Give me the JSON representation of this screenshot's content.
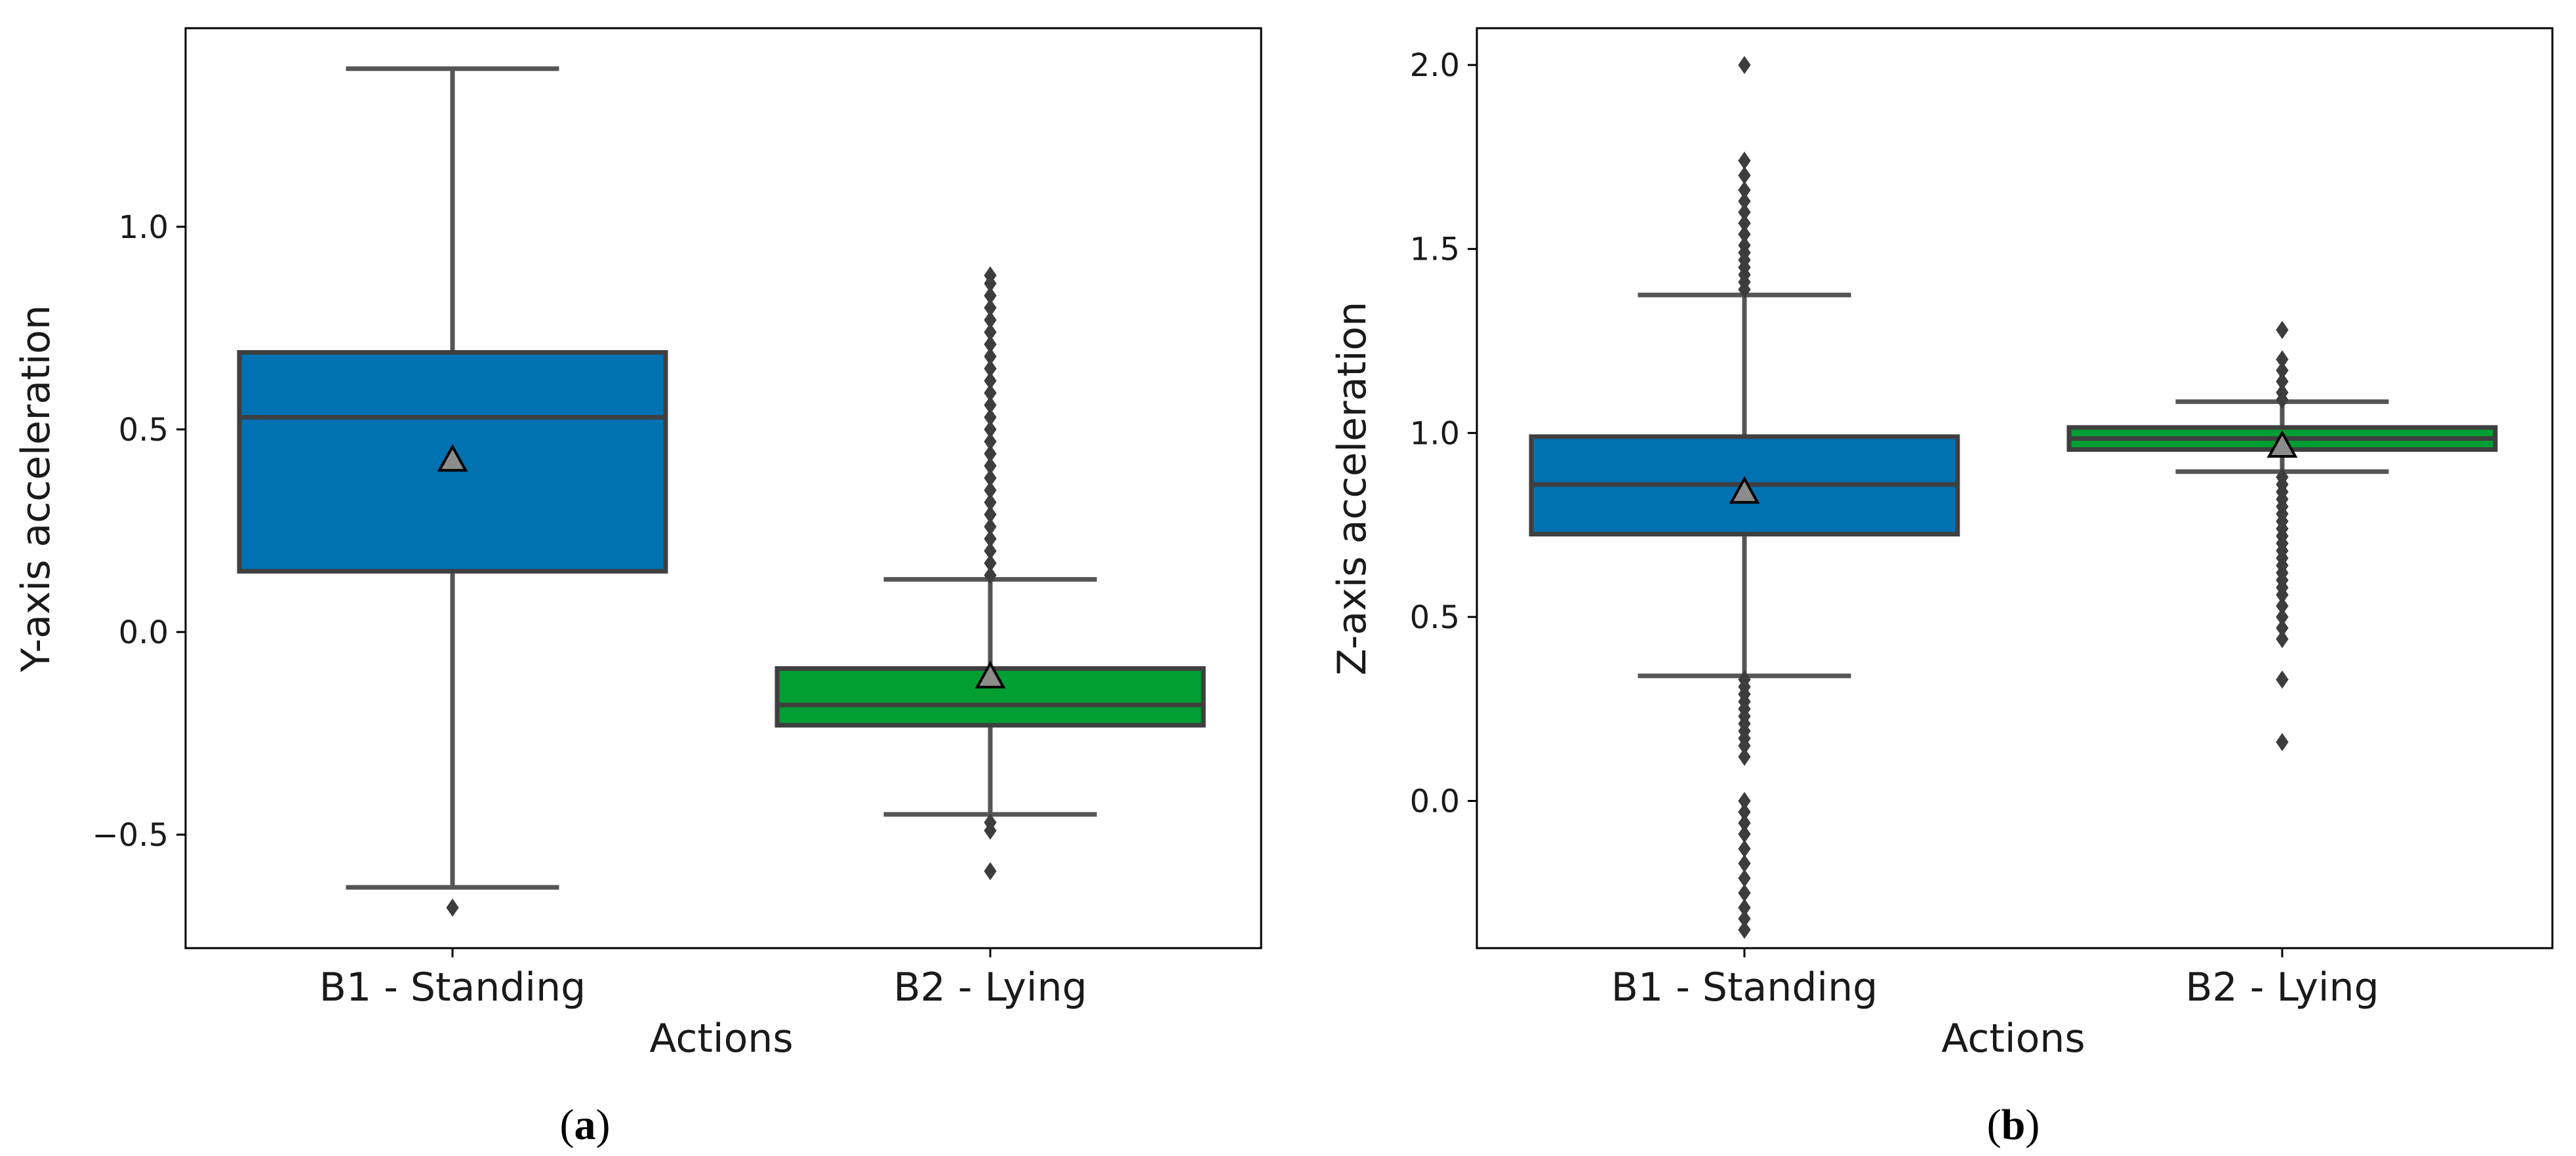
{
  "chart_data": [
    {
      "type": "box",
      "panel_label": "a",
      "xlabel": "Actions",
      "ylabel": "Y-axis acceleration",
      "categories": [
        "B1 - Standing",
        "B2 - Lying"
      ],
      "ylim": [
        -0.78,
        1.49
      ],
      "yticks": [
        -0.5,
        0.0,
        0.5,
        1.0
      ],
      "ytick_labels": [
        "−0.5",
        "0.0",
        "0.5",
        "1.0"
      ],
      "colors": [
        "#0072B2",
        "#009E33"
      ],
      "boxes": [
        {
          "name": "B1 - Standing",
          "whisker_low": -0.63,
          "q1": 0.15,
          "median": 0.53,
          "q3": 0.69,
          "whisker_high": 1.39,
          "mean": 0.425,
          "outliers": [
            -0.68
          ]
        },
        {
          "name": "B2 - Lying",
          "whisker_low": -0.45,
          "q1": -0.23,
          "median": -0.18,
          "q3": -0.09,
          "whisker_high": 0.13,
          "mean": -0.11,
          "outliers": [
            0.14,
            0.17,
            0.2,
            0.23,
            0.26,
            0.29,
            0.32,
            0.35,
            0.38,
            0.41,
            0.44,
            0.47,
            0.5,
            0.53,
            0.56,
            0.59,
            0.62,
            0.65,
            0.68,
            0.71,
            0.74,
            0.77,
            0.8,
            0.83,
            0.86,
            0.88,
            -0.47,
            -0.49,
            -0.59
          ]
        }
      ]
    },
    {
      "type": "box",
      "panel_label": "b",
      "xlabel": "Actions",
      "ylabel": "Z-axis acceleration",
      "categories": [
        "B1 - Standing",
        "B2 - Lying"
      ],
      "ylim": [
        -0.4,
        2.1
      ],
      "yticks": [
        0.0,
        0.5,
        1.0,
        1.5,
        2.0
      ],
      "ytick_labels": [
        "0.0",
        "0.5",
        "1.0",
        "1.5",
        "2.0"
      ],
      "colors": [
        "#0072B2",
        "#009E33"
      ],
      "boxes": [
        {
          "name": "B1 - Standing",
          "whisker_low": 0.34,
          "q1": 0.725,
          "median": 0.86,
          "q3": 0.99,
          "whisker_high": 1.375,
          "mean": 0.84,
          "outliers": [
            2.0,
            1.74,
            1.7,
            1.66,
            1.63,
            1.6,
            1.57,
            1.54,
            1.51,
            1.49,
            1.47,
            1.45,
            1.43,
            1.41,
            1.39,
            0.33,
            0.31,
            0.29,
            0.27,
            0.25,
            0.23,
            0.21,
            0.19,
            0.17,
            0.15,
            0.12,
            0.0,
            -0.03,
            -0.06,
            -0.09,
            -0.13,
            -0.17,
            -0.21,
            -0.25,
            -0.29,
            -0.32,
            -0.35
          ]
        },
        {
          "name": "B2 - Lying",
          "whisker_low": 0.895,
          "q1": 0.955,
          "median": 0.985,
          "q3": 1.015,
          "whisker_high": 1.085,
          "mean": 0.965,
          "outliers": [
            1.28,
            1.2,
            1.17,
            1.14,
            1.11,
            1.09,
            0.88,
            0.86,
            0.84,
            0.82,
            0.8,
            0.78,
            0.76,
            0.74,
            0.72,
            0.7,
            0.68,
            0.66,
            0.64,
            0.62,
            0.6,
            0.58,
            0.56,
            0.53,
            0.5,
            0.47,
            0.44,
            0.33,
            0.16
          ]
        }
      ]
    }
  ]
}
